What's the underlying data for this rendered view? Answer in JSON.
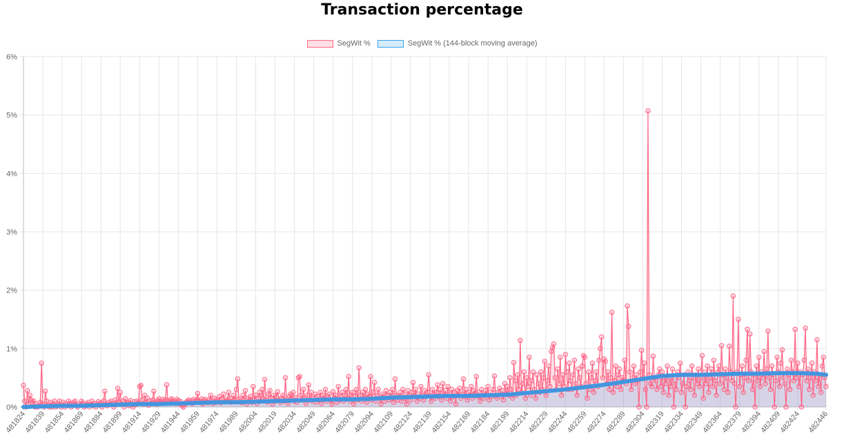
{
  "chart_data": {
    "type": "line",
    "title": "Transaction percentage",
    "xlabel": "",
    "ylabel": "",
    "x_start": 481824,
    "x_end": 482446,
    "x_tick_labels": [
      "481824",
      "481839",
      "481854",
      "481869",
      "481884",
      "481899",
      "481914",
      "481929",
      "481944",
      "481959",
      "481974",
      "481989",
      "482004",
      "482019",
      "482034",
      "482049",
      "482064",
      "482079",
      "482094",
      "482109",
      "482124",
      "482139",
      "482154",
      "482169",
      "482184",
      "482199",
      "482214",
      "482229",
      "482244",
      "482259",
      "482274",
      "482289",
      "482304",
      "482319",
      "482334",
      "482349",
      "482364",
      "482379",
      "482394",
      "482409",
      "482424",
      "482446"
    ],
    "y_tick_labels": [
      "0%",
      "1%",
      "2%",
      "3%",
      "4%",
      "5%",
      "6%"
    ],
    "ylim": [
      0,
      6
    ],
    "grid": true,
    "legend_position": "top",
    "series": [
      {
        "name": "SegWit %",
        "color": "#ff6384",
        "values": [
          0.37,
          0.1,
          0,
          0.28,
          0.05,
          0.2,
          0.12,
          0.08,
          0.1,
          0,
          0.05,
          0,
          0.02,
          0.08,
          0.75,
          0.05,
          0,
          0.27,
          0.1,
          0.03,
          0,
          0.08,
          0,
          0.05,
          0.1,
          0,
          0.02,
          0.05,
          0.1,
          0,
          0.03,
          0.08,
          0,
          0.05,
          0.02,
          0.1,
          0.06,
          0,
          0.04,
          0.08,
          0.1,
          0.02,
          0,
          0.05,
          0.03,
          0.1,
          0.07,
          0,
          0.02,
          0.05,
          0.08,
          0,
          0.04,
          0.1,
          0.02,
          0.06,
          0,
          0.05,
          0.09,
          0.03,
          0.07,
          0,
          0.1,
          0.27,
          0.05,
          0.02,
          0.08,
          0.04,
          0.1,
          0.06,
          0,
          0.12,
          0.05,
          0.32,
          0.08,
          0.25,
          0.05,
          0.1,
          0,
          0.14,
          0.06,
          0.08,
          0.02,
          0.11,
          0.05,
          0,
          0.09,
          0.04,
          0.1,
          0.07,
          0.35,
          0.37,
          0.12,
          0.05,
          0.2,
          0.08,
          0.15,
          0.03,
          0.1,
          0.06,
          0.12,
          0.27,
          0.08,
          0.05,
          0.11,
          0.14,
          0.1,
          0.06,
          0.13,
          0.09,
          0.12,
          0.38,
          0.1,
          0.07,
          0.12,
          0.14,
          0.08,
          0.1,
          0.06,
          0.13,
          0.11,
          0.05,
          0.09,
          0.02,
          0,
          0.04,
          0.08,
          0.1,
          0.12,
          0.07,
          0.11,
          0.06,
          0.13,
          0.09,
          0.12,
          0.23,
          0.1,
          0.08,
          0.14,
          0.05,
          0.11,
          0.13,
          0.09,
          0.07,
          0.12,
          0.2,
          0.1,
          0.06,
          0.15,
          0.08,
          0.12,
          0.1,
          0.18,
          0.07,
          0.14,
          0.22,
          0.09,
          0.13,
          0.11,
          0.25,
          0.15,
          0.08,
          0.1,
          0.2,
          0.12,
          0.3,
          0.48,
          0.14,
          0.1,
          0.07,
          0.2,
          0.12,
          0.28,
          0.05,
          0.15,
          0.1,
          0.18,
          0.08,
          0.35,
          0.12,
          0.2,
          0.06,
          0.15,
          0.25,
          0.1,
          0.3,
          0.14,
          0.47,
          0.12,
          0.08,
          0.22,
          0.28,
          0.15,
          0.05,
          0.2,
          0.1,
          0.18,
          0.26,
          0.12,
          0.08,
          0.15,
          0.2,
          0.1,
          0.5,
          0.12,
          0.06,
          0.18,
          0.22,
          0.14,
          0.25,
          0.1,
          0.16,
          0.08,
          0.5,
          0.52,
          0.2,
          0.12,
          0.3,
          0.15,
          0.06,
          0.2,
          0.38,
          0.12,
          0.25,
          0.1,
          0.15,
          0.22,
          0.08,
          0.18,
          0.12,
          0.25,
          0.06,
          0.2,
          0.14,
          0.3,
          0.1,
          0.18,
          0.22,
          0.12,
          0.05,
          0.26,
          0.15,
          0.2,
          0.08,
          0.35,
          0.12,
          0.18,
          0.25,
          0.1,
          0.2,
          0.3,
          0.15,
          0.52,
          0.1,
          0.2,
          0.25,
          0.05,
          0.18,
          0.3,
          0.12,
          0.67,
          0.2,
          0.1,
          0.25,
          0.15,
          0.3,
          0.08,
          0.22,
          0.18,
          0.52,
          0.12,
          0.25,
          0.42,
          0.1,
          0.2,
          0.3,
          0.15,
          0.05,
          0.22,
          0.18,
          0.1,
          0.28,
          0.2,
          0.12,
          0.25,
          0.15,
          0.3,
          0.08,
          0.48,
          0.2,
          0.12,
          0.18,
          0.25,
          0.1,
          0.3,
          0.22,
          0.15,
          0.05,
          0.28,
          0.2,
          0.12,
          0.25,
          0.42,
          0.18,
          0.3,
          0.1,
          0.22,
          0.15,
          0.35,
          0.2,
          0.12,
          0.28,
          0.18,
          0.25,
          0.55,
          0.2,
          0.1,
          0.3,
          0.22,
          0.15,
          0.25,
          0.38,
          0.18,
          0.3,
          0.12,
          0.4,
          0.2,
          0.28,
          0.15,
          0.35,
          0.22,
          0.1,
          0.3,
          0.18,
          0.25,
          0.05,
          0.28,
          0.2,
          0.32,
          0.15,
          0.22,
          0.48,
          0.18,
          0.3,
          0.12,
          0.25,
          0.2,
          0.35,
          0.15,
          0.28,
          0.22,
          0.52,
          0.18,
          0.25,
          0.1,
          0.3,
          0.2,
          0.15,
          0.28,
          0.22,
          0.35,
          0.12,
          0.25,
          0.18,
          0.3,
          0.53,
          0.2,
          0.15,
          0.25,
          0.32,
          0.18,
          0.28,
          0.12,
          0.4,
          0.22,
          0.35,
          0.2,
          0.5,
          0.3,
          0.15,
          0.76,
          0.45,
          0.2,
          0.55,
          0.3,
          1.14,
          0.25,
          0.4,
          0.6,
          0.15,
          0.5,
          0.35,
          0.85,
          0.2,
          0.45,
          0.6,
          0.3,
          0.15,
          0.55,
          0.4,
          0.25,
          0.6,
          0.3,
          0.5,
          0.78,
          0.2,
          0.45,
          0.7,
          0.35,
          0.95,
          1.02,
          1.08,
          0.5,
          0.3,
          0.65,
          0.4,
          0.85,
          0.2,
          0.55,
          0.35,
          0.9,
          0.6,
          0.3,
          0.75,
          0.45,
          0.3,
          0.55,
          0.8,
          0.4,
          0.2,
          0.65,
          0.5,
          0.35,
          0.7,
          0.88,
          0.85,
          0.4,
          0.15,
          0.6,
          0.3,
          0.5,
          0.75,
          0.25,
          0.45,
          0.6,
          0.35,
          0.8,
          1.0,
          1.2,
          0.5,
          0.82,
          0.78,
          0.4,
          0.6,
          0.3,
          0.5,
          1.62,
          0.25,
          0.45,
          0.7,
          0.35,
          0.55,
          0.65,
          0.3,
          0.5,
          0.45,
          0.8,
          0.4,
          1.73,
          1.38,
          0.6,
          0.3,
          0.5,
          0.7,
          0.4,
          0.55,
          0.45,
          0,
          0.6,
          0.97,
          0.5,
          0.75,
          0.3,
          0,
          5.07,
          0.55,
          0.4,
          0.35,
          0.87,
          0.5,
          0.45,
          0.3,
          0.55,
          0.65,
          0.35,
          0.6,
          0.25,
          0.5,
          0.4,
          0.7,
          0.2,
          0.5,
          0.35,
          0.65,
          0,
          0.45,
          0.3,
          0.6,
          0.5,
          0.75,
          0.25,
          0.4,
          0.55,
          0,
          0.35,
          0.6,
          0.45,
          0.3,
          0.7,
          0.5,
          0.2,
          0.55,
          0.4,
          0.65,
          0.35,
          0.5,
          0.88,
          0.15,
          0.6,
          0.4,
          0.7,
          0.25,
          0.5,
          0.65,
          0.35,
          0.8,
          0.45,
          0.2,
          0.6,
          0.7,
          0.4,
          1.05,
          0.55,
          0.3,
          0.65,
          0.5,
          0.25,
          1.04,
          0.6,
          0.45,
          1.9,
          0.4,
          0,
          0.6,
          1.5,
          0.35,
          0.55,
          0.7,
          0.25,
          0.5,
          0.8,
          1.33,
          0.45,
          1.25,
          0.6,
          0.3,
          0.55,
          0,
          0.7,
          0.45,
          0.85,
          0.35,
          0.6,
          0.5,
          0.95,
          0.4,
          0.65,
          1.3,
          0.5,
          0.3,
          0.7,
          0.55,
          0,
          0.45,
          0.85,
          0.6,
          0.35,
          0.75,
          0.98,
          0.5,
          0.4,
          0,
          0.65,
          0.55,
          0.3,
          0.8,
          0.6,
          0.45,
          1.33,
          0.5,
          0.75,
          0.35,
          0.6,
          0,
          0.55,
          0.8,
          1.35,
          0.45,
          0.65,
          0.3,
          0.5,
          0.75,
          0.2,
          0.6,
          0.45,
          1.15,
          0.35,
          0.55,
          0.25,
          0.7,
          0.85,
          0.5,
          0.35
        ]
      },
      {
        "name": "SegWit % (144-block moving average)",
        "color": "#36a2eb",
        "x": [
          481824,
          481839,
          481854,
          481869,
          481884,
          481899,
          481914,
          481929,
          481944,
          481959,
          481974,
          481989,
          482004,
          482019,
          482034,
          482049,
          482064,
          482079,
          482094,
          482109,
          482124,
          482139,
          482154,
          482169,
          482184,
          482199,
          482214,
          482229,
          482244,
          482259,
          482274,
          482289,
          482304,
          482319,
          482334,
          482349,
          482364,
          482379,
          482394,
          482409,
          482424,
          482439,
          482446
        ],
        "values": [
          0,
          0.01,
          0.02,
          0.02,
          0.03,
          0.04,
          0.05,
          0.05,
          0.06,
          0.07,
          0.08,
          0.08,
          0.09,
          0.1,
          0.11,
          0.12,
          0.13,
          0.13,
          0.14,
          0.16,
          0.17,
          0.18,
          0.19,
          0.19,
          0.2,
          0.21,
          0.24,
          0.27,
          0.3,
          0.34,
          0.38,
          0.43,
          0.48,
          0.53,
          0.55,
          0.55,
          0.56,
          0.57,
          0.57,
          0.58,
          0.58,
          0.57,
          0.55
        ]
      }
    ]
  }
}
